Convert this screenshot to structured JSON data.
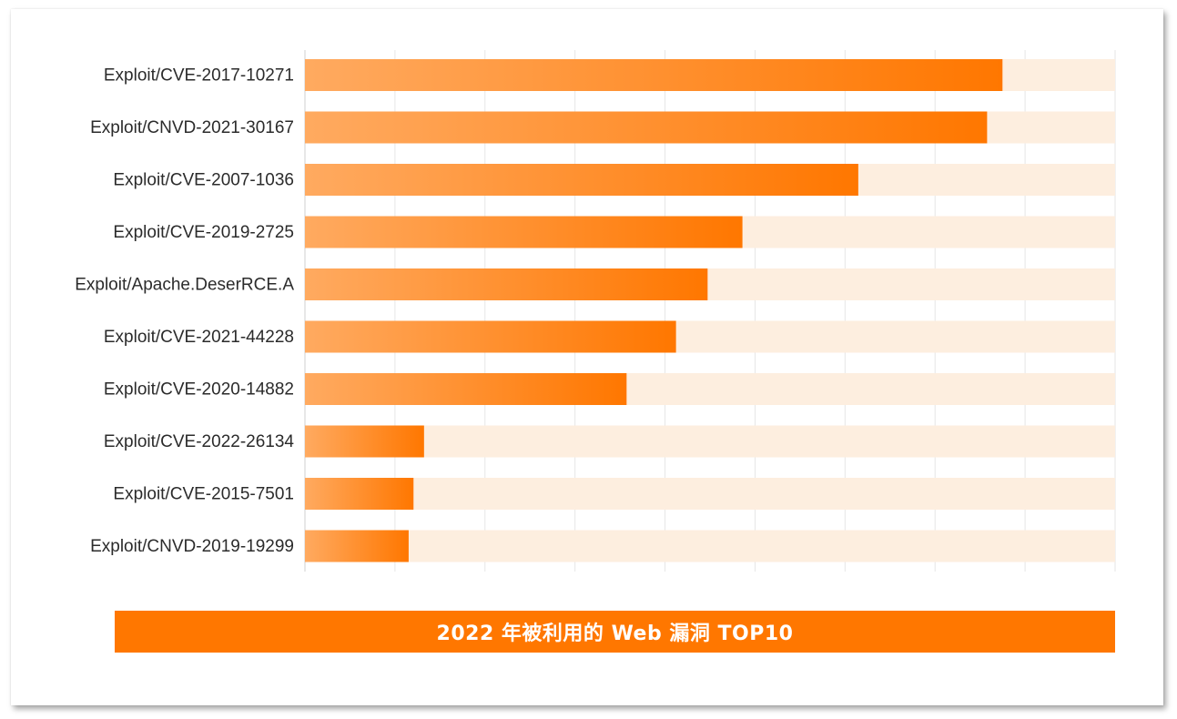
{
  "chart_data": {
    "type": "bar",
    "orientation": "horizontal",
    "title": "2022 年被利用的 Web 漏洞 TOP10",
    "categories": [
      "Exploit/CVE-2017-10271",
      "Exploit/CNVD-2021-30167",
      "Exploit/CVE-2007-1036",
      "Exploit/CVE-2019-2725",
      "Exploit/Apache.DeserRCE.A",
      "Exploit/CVE-2021-44228",
      "Exploit/CVE-2020-14882",
      "Exploit/CVE-2022-26134",
      "Exploit/CVE-2015-7501",
      "Exploit/CNVD-2019-19299"
    ],
    "values": [
      86.1,
      84.2,
      68.3,
      54.0,
      49.7,
      45.8,
      39.7,
      14.7,
      13.4,
      12.8
    ],
    "xlim": [
      0,
      100
    ],
    "xlabel": "",
    "ylabel": "",
    "grid": true,
    "legend": "none",
    "colors": {
      "bar_start": "#ffaa60",
      "bar_end": "#ff7700",
      "track": "#fdeedf",
      "grid": "#e6e6e6",
      "title_bg": "#ff7700"
    }
  }
}
